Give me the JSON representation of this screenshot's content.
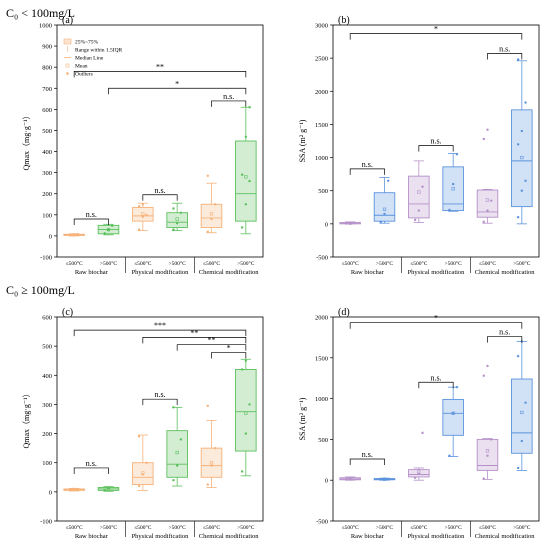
{
  "sections": [
    {
      "label": "C₀ < 100mg/L"
    },
    {
      "label": "C₀ ≥ 100mg/L"
    }
  ],
  "colors": {
    "raw_le": "#f6b27a",
    "raw_gt": "#5cc05c",
    "phys_le": "#f6b27a",
    "phys_gt": "#5cc05c",
    "chem_le": "#f6b27a",
    "chem_gt": "#5cc05c",
    "ssa_le": "#b590c9",
    "ssa_gt": "#5b93dd"
  },
  "legend": [
    "25%~75%",
    "Range within 1.5IQR",
    "Median Line",
    "Mean",
    "Outliers"
  ],
  "chart_data": [
    {
      "panel": "(a)",
      "type": "box",
      "ylabel": "Qmax（mg·g⁻¹）",
      "ylim": [
        -100,
        1000
      ],
      "yticks": [
        -100,
        0,
        100,
        200,
        300,
        400,
        500,
        600,
        700,
        800,
        900,
        1000
      ],
      "groups": [
        "Raw biochar",
        "Physical modification",
        "Chemical modification"
      ],
      "categories": [
        "≤500°C",
        ">500°C",
        "≤500°C",
        ">500°C",
        "≤500°C",
        ">500°C"
      ],
      "boxes": [
        {
          "q1": 2,
          "median": 5,
          "q3": 8,
          "whisker_low": 0,
          "whisker_high": 10,
          "mean": 5,
          "points": [
            3,
            6,
            8
          ]
        },
        {
          "q1": 10,
          "median": 30,
          "q3": 50,
          "whisker_low": 5,
          "whisker_high": 55,
          "mean": 30,
          "points": [
            12,
            28,
            48
          ]
        },
        {
          "q1": 70,
          "median": 95,
          "q3": 135,
          "whisker_low": 25,
          "whisker_high": 155,
          "mean": 105,
          "points": [
            30,
            90,
            100,
            140,
            150
          ]
        },
        {
          "q1": 40,
          "median": 65,
          "q3": 110,
          "whisker_low": 25,
          "whisker_high": 155,
          "mean": 80,
          "points": [
            30,
            60,
            110,
            130
          ]
        },
        {
          "q1": 40,
          "median": 85,
          "q3": 150,
          "whisker_low": 15,
          "whisker_high": 250,
          "mean": 105,
          "points": [
            20,
            80,
            150,
            285
          ]
        },
        {
          "q1": 70,
          "median": 200,
          "q3": 450,
          "whisker_low": 10,
          "whisker_high": 610,
          "mean": 280,
          "points": [
            40,
            150,
            260,
            290,
            470,
            610
          ]
        }
      ],
      "annotations": [
        {
          "from": 0,
          "to": 1,
          "label": "n.s.",
          "value": 80
        },
        {
          "from": 2,
          "to": 3,
          "label": "n.s.",
          "value": 195
        },
        {
          "from": 4,
          "to": 5,
          "label": "n.s.",
          "value": 640
        },
        {
          "from": 1,
          "to": 5,
          "label": "*",
          "value": 700
        },
        {
          "from": 0,
          "to": 5,
          "label": "**",
          "value": 780
        }
      ]
    },
    {
      "panel": "(b)",
      "type": "box",
      "ylabel": "SSA (m² g⁻¹)",
      "ylim": [
        -500,
        3000
      ],
      "yticks": [
        -500,
        0,
        500,
        1000,
        1500,
        2000,
        2500,
        3000
      ],
      "groups": [
        "Raw biochar",
        "Physical modification",
        "Chemical modification"
      ],
      "categories": [
        "≤500°C",
        ">500°C",
        "≤500°C",
        ">500°C",
        "≤500°C",
        ">500°C"
      ],
      "boxes": [
        {
          "q1": 0,
          "median": 5,
          "q3": 20,
          "whisker_low": 0,
          "whisker_high": 30,
          "mean": 10,
          "points": [
            5,
            15
          ]
        },
        {
          "q1": 40,
          "median": 130,
          "q3": 470,
          "whisker_low": 10,
          "whisker_high": 700,
          "mean": 220,
          "points": [
            30,
            150,
            650
          ]
        },
        {
          "q1": 90,
          "median": 300,
          "q3": 720,
          "whisker_low": 20,
          "whisker_high": 950,
          "mean": 480,
          "points": [
            60,
            200,
            560
          ]
        },
        {
          "q1": 200,
          "median": 300,
          "q3": 860,
          "whisker_low": 190,
          "whisker_high": 1060,
          "mean": 530,
          "points": [
            210,
            600,
            1050
          ]
        },
        {
          "q1": 100,
          "median": 180,
          "q3": 510,
          "whisker_low": 10,
          "whisker_high": 520,
          "mean": 360,
          "points": [
            30,
            200,
            350,
            1280,
            1420
          ]
        },
        {
          "q1": 260,
          "median": 950,
          "q3": 1720,
          "whisker_low": 0,
          "whisker_high": 2460,
          "mean": 1000,
          "points": [
            100,
            500,
            650,
            1200,
            1400,
            1830,
            2480
          ]
        }
      ],
      "annotations": [
        {
          "from": 0,
          "to": 1,
          "label": "n.s.",
          "value": 830
        },
        {
          "from": 2,
          "to": 3,
          "label": "n.s.",
          "value": 1180
        },
        {
          "from": 4,
          "to": 5,
          "label": "n.s.",
          "value": 2570
        },
        {
          "from": 0,
          "to": 5,
          "label": "*",
          "value": 2870
        }
      ]
    },
    {
      "panel": "(c)",
      "type": "box",
      "ylabel": "Qmax（mg·g⁻¹）",
      "ylim": [
        -100,
        600
      ],
      "yticks": [
        -100,
        0,
        100,
        200,
        300,
        400,
        500,
        600
      ],
      "groups": [
        "Raw biochar",
        "Physical modification",
        "Chemical modification"
      ],
      "categories": [
        "≤500°C",
        ">500°C",
        "≤500°C",
        ">500°C",
        "≤500°C",
        ">500°C"
      ],
      "boxes": [
        {
          "q1": 5,
          "median": 8,
          "q3": 10,
          "whisker_low": 3,
          "whisker_high": 12,
          "mean": 8,
          "points": [
            6,
            10
          ]
        },
        {
          "q1": 5,
          "median": 10,
          "q3": 15,
          "whisker_low": 2,
          "whisker_high": 18,
          "mean": 10,
          "points": [
            6,
            14
          ]
        },
        {
          "q1": 25,
          "median": 50,
          "q3": 100,
          "whisker_low": 5,
          "whisker_high": 195,
          "mean": 65,
          "points": [
            20,
            60,
            100,
            190
          ]
        },
        {
          "q1": 50,
          "median": 95,
          "q3": 210,
          "whisker_low": 20,
          "whisker_high": 290,
          "mean": 135,
          "points": [
            40,
            90,
            180,
            290
          ]
        },
        {
          "q1": 50,
          "median": 90,
          "q3": 150,
          "whisker_low": 15,
          "whisker_high": 245,
          "mean": 100,
          "points": [
            25,
            90,
            150,
            295
          ]
        },
        {
          "q1": 140,
          "median": 275,
          "q3": 420,
          "whisker_low": 55,
          "whisker_high": 455,
          "mean": 270,
          "points": [
            70,
            200,
            300,
            420,
            450
          ]
        }
      ],
      "annotations": [
        {
          "from": 0,
          "to": 1,
          "label": "n.s.",
          "value": 82
        },
        {
          "from": 2,
          "to": 3,
          "label": "n.s.",
          "value": 318
        },
        {
          "from": 4,
          "to": 5,
          "label": "*",
          "value": 478
        },
        {
          "from": 3,
          "to": 5,
          "label": "**",
          "value": 505
        },
        {
          "from": 2,
          "to": 5,
          "label": "**",
          "value": 530
        },
        {
          "from": 0,
          "to": 5,
          "label": "***",
          "value": 555
        }
      ]
    },
    {
      "panel": "(d)",
      "type": "box",
      "ylabel": "SSA (m² g⁻¹)",
      "ylim": [
        -500,
        2000
      ],
      "yticks": [
        -500,
        0,
        500,
        1000,
        1500,
        2000
      ],
      "groups": [
        "Raw biochar",
        "Physical modification",
        "Chemical modification"
      ],
      "categories": [
        "≤500°C",
        ">500°C",
        "≤500°C",
        ">500°C",
        "≤500°C",
        ">500°C"
      ],
      "boxes": [
        {
          "q1": 5,
          "median": 15,
          "q3": 30,
          "whisker_low": 0,
          "whisker_high": 40,
          "mean": 15,
          "points": [
            10,
            30
          ]
        },
        {
          "q1": 5,
          "median": 12,
          "q3": 20,
          "whisker_low": 0,
          "whisker_high": 25,
          "mean": 12,
          "points": [
            8,
            18
          ]
        },
        {
          "q1": 40,
          "median": 70,
          "q3": 130,
          "whisker_low": 0,
          "whisker_high": 150,
          "mean": 100,
          "points": [
            30,
            80,
            580
          ]
        },
        {
          "q1": 550,
          "median": 820,
          "q3": 990,
          "whisker_low": 290,
          "whisker_high": 1140,
          "mean": 820,
          "points": [
            300,
            820,
            1140
          ]
        },
        {
          "q1": 120,
          "median": 180,
          "q3": 500,
          "whisker_low": 10,
          "whisker_high": 510,
          "mean": 360,
          "points": [
            20,
            300,
            500,
            1280,
            1400
          ]
        },
        {
          "q1": 330,
          "median": 580,
          "q3": 1240,
          "whisker_low": 120,
          "whisker_high": 1700,
          "mean": 830,
          "points": [
            150,
            480,
            950,
            1520,
            1700
          ]
        }
      ],
      "annotations": [
        {
          "from": 0,
          "to": 1,
          "label": "n.s.",
          "value": 260
        },
        {
          "from": 2,
          "to": 3,
          "label": "n.s.",
          "value": 1200
        },
        {
          "from": 4,
          "to": 5,
          "label": "n.s.",
          "value": 1760
        },
        {
          "from": 0,
          "to": 5,
          "label": "*",
          "value": 1930
        }
      ]
    }
  ]
}
